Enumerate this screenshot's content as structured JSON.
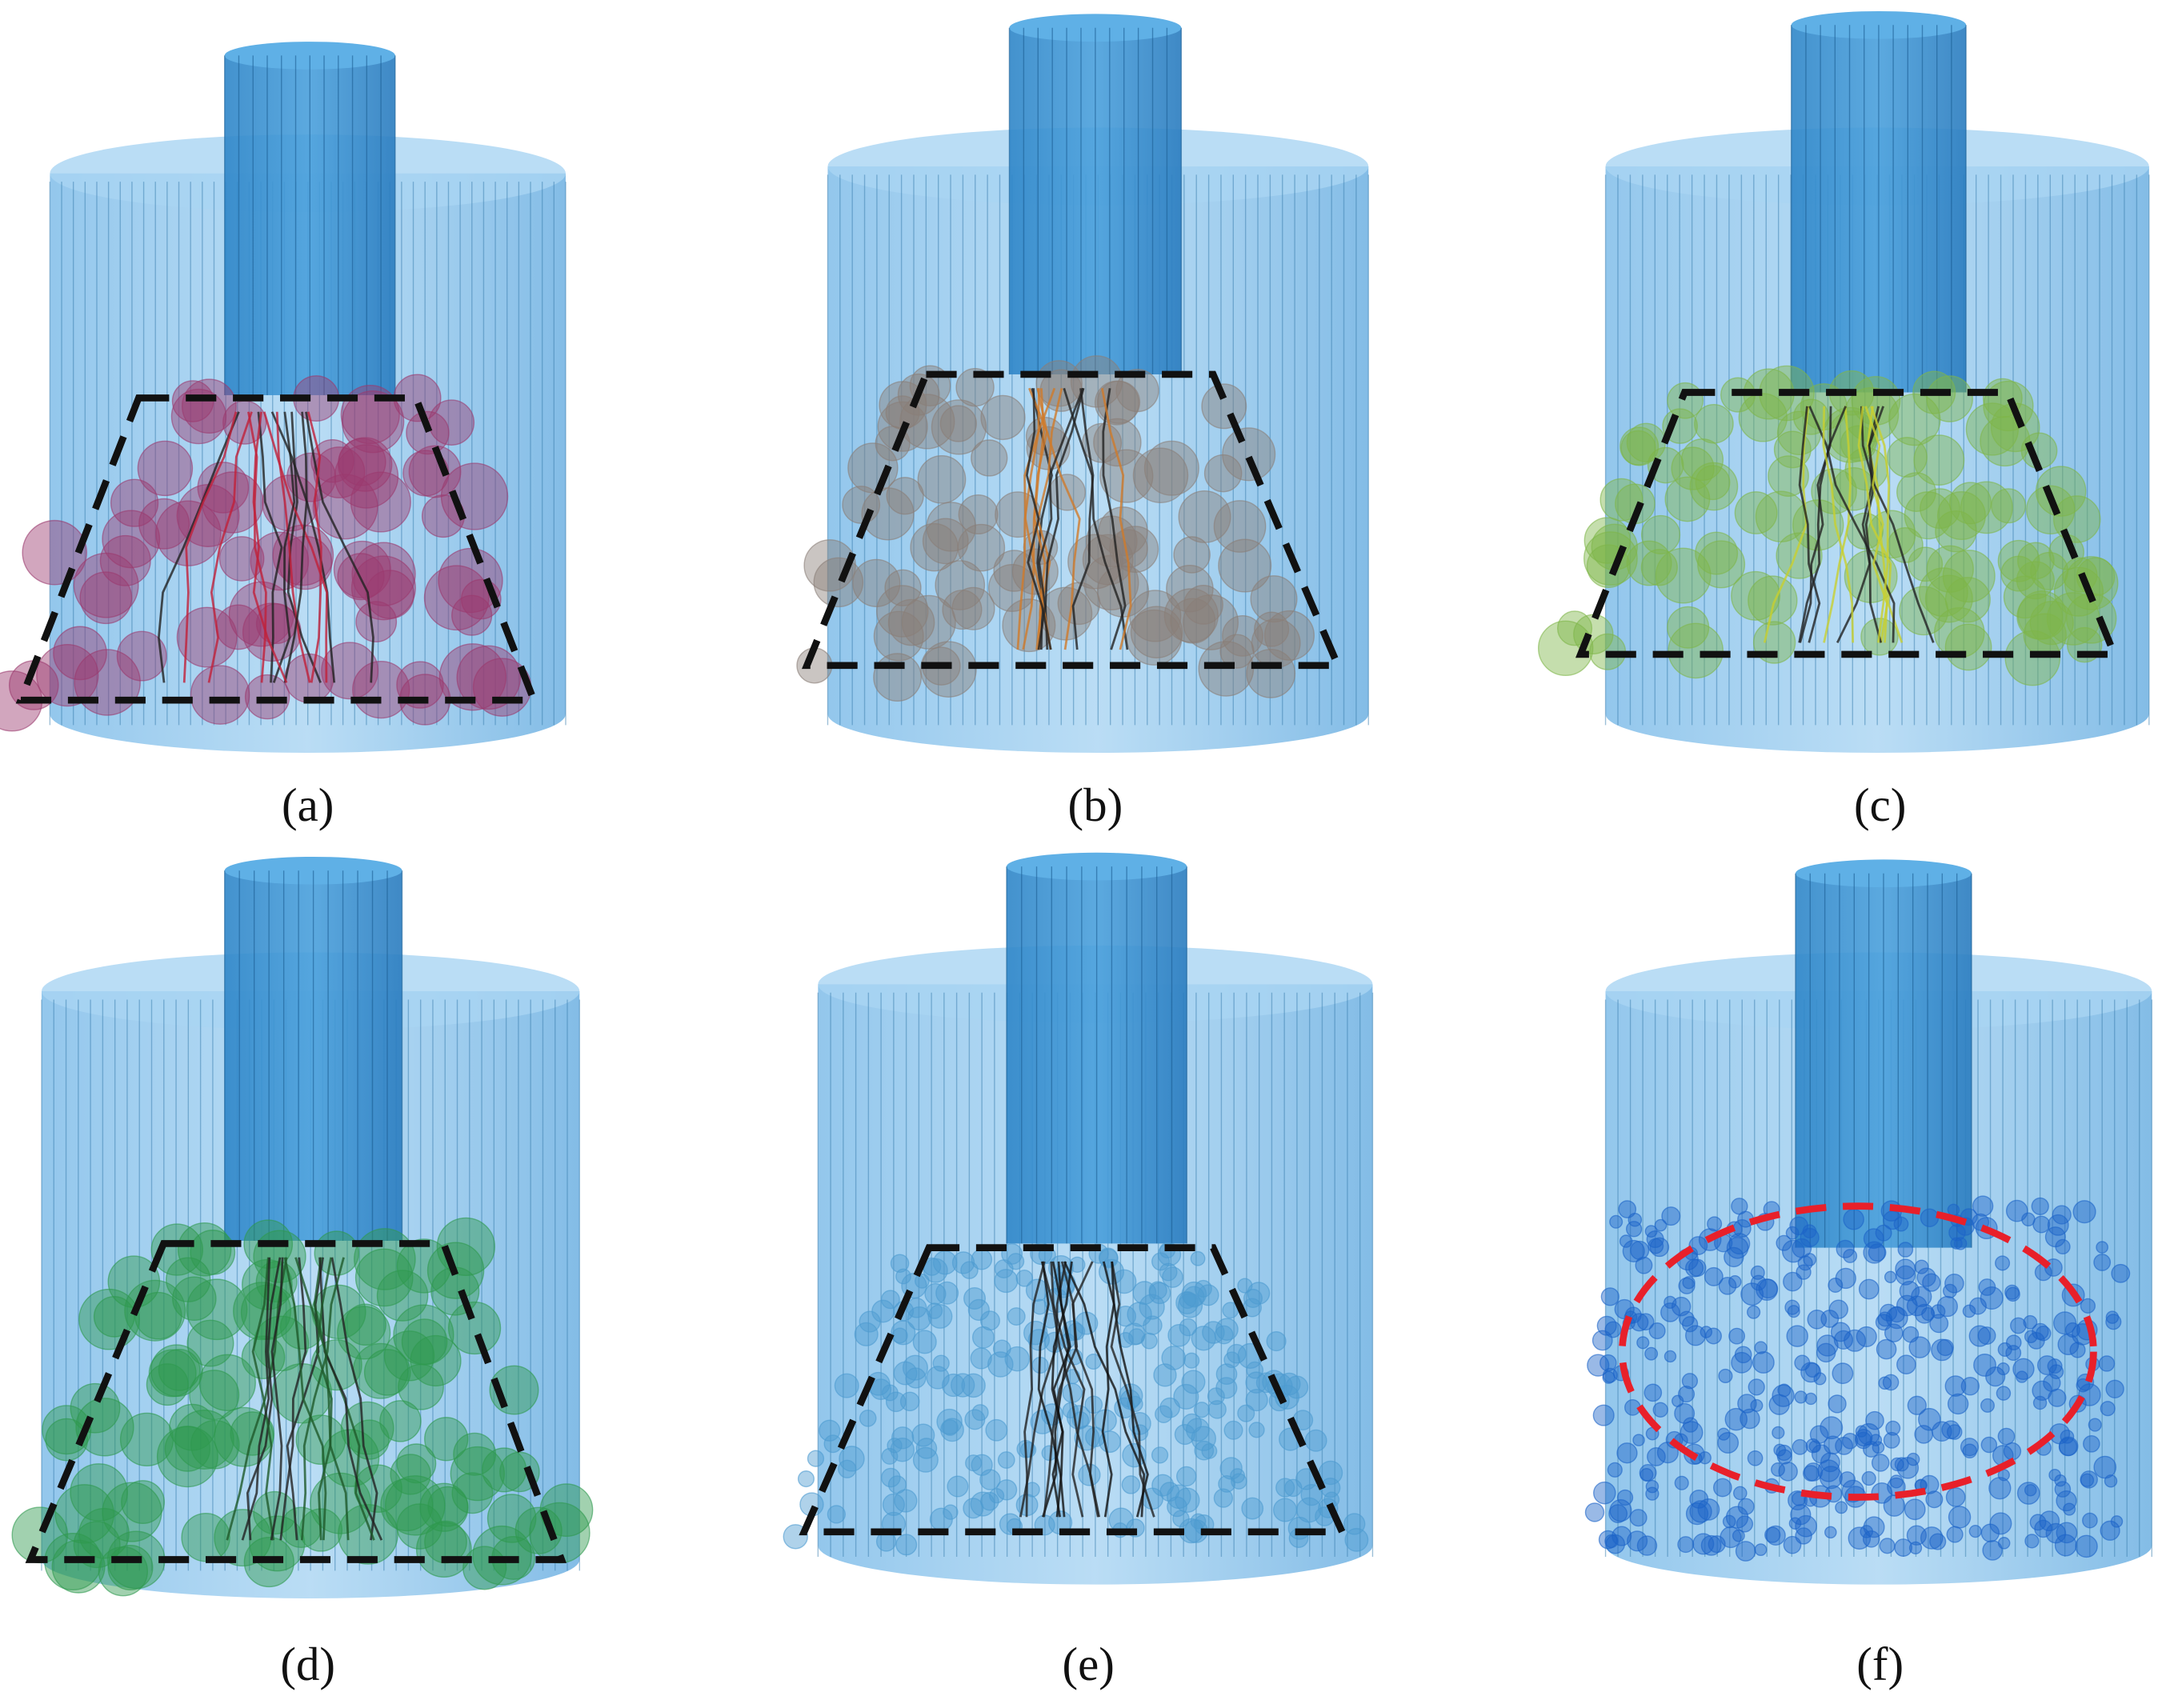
{
  "panels": [
    {
      "label": "(a)"
    },
    {
      "label": "(b)"
    },
    {
      "label": "(c)"
    },
    {
      "label": "(d)"
    },
    {
      "label": "(e)"
    },
    {
      "label": "(f)"
    }
  ]
}
